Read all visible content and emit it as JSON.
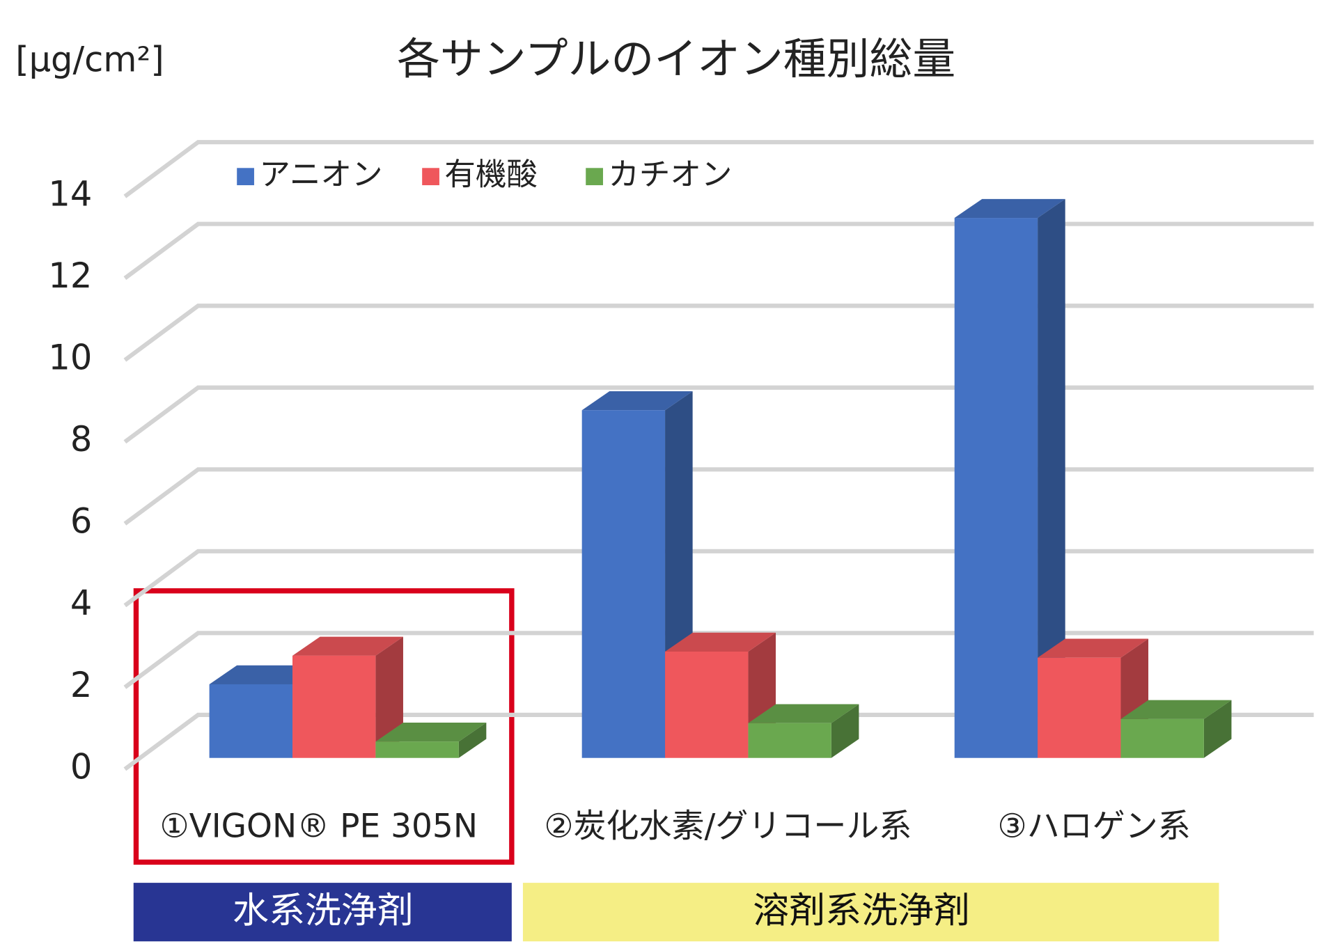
{
  "chart_data": {
    "type": "bar3d",
    "title": "各サンプルのイオン種別総量",
    "y_label": "[μg/cm²]",
    "categories": [
      "①VIGON® PE 305N",
      "②炭化水素/グリコール系",
      "③ハロゲン系"
    ],
    "series": [
      {
        "name": "アニオン",
        "color": "#4472c4",
        "values": [
          1.8,
          8.5,
          13.2
        ]
      },
      {
        "name": "有機酸",
        "color": "#ef575c",
        "values": [
          2.5,
          2.6,
          2.45
        ]
      },
      {
        "name": "カチオン",
        "color": "#6aa84f",
        "values": [
          0.4,
          0.85,
          0.95
        ]
      }
    ],
    "ylim": [
      0,
      14
    ],
    "yticks": [
      0,
      2,
      4,
      6,
      8,
      10,
      12,
      14
    ],
    "grid": true,
    "group_labels": [
      "水系洗浄剤",
      "溶剤系洗浄剤"
    ]
  }
}
